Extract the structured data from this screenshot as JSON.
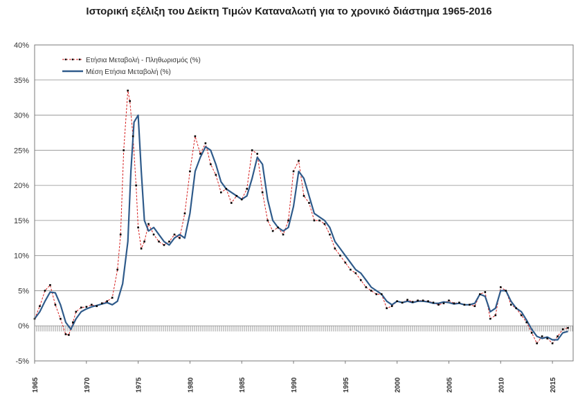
{
  "chart_data": {
    "type": "line",
    "title": "Ιστορική εξέλιξη του Δείκτη Τιμών Καταναλωτή για το χρονικό διάστημα 1965-2016",
    "xlabel": "",
    "ylabel": "",
    "xlim": [
      1965,
      2017
    ],
    "ylim": [
      -5,
      40
    ],
    "y_ticks": [
      "-5%",
      "0%",
      "5%",
      "10%",
      "15%",
      "20%",
      "25%",
      "30%",
      "35%",
      "40%"
    ],
    "y_tick_values": [
      -5,
      0,
      5,
      10,
      15,
      20,
      25,
      30,
      35,
      40
    ],
    "x_ticks": [
      "1965",
      "1970",
      "1975",
      "1980",
      "1985",
      "1990",
      "1995",
      "2000",
      "2005",
      "2010",
      "2015"
    ],
    "x_tick_values": [
      1965,
      1970,
      1975,
      1980,
      1985,
      1990,
      1995,
      2000,
      2005,
      2010,
      2015
    ],
    "grid": "horizontal",
    "legend": "top-left",
    "series": [
      {
        "name": "Ετήσια Μεταβολή  - Πληθωρισμός (%)",
        "color": "#d62020",
        "marker_color": "#000000",
        "style": "dashed-with-markers",
        "x": [
          1965.0,
          1965.5,
          1966.0,
          1966.5,
          1967.0,
          1967.5,
          1968.0,
          1968.3,
          1968.7,
          1969.0,
          1969.5,
          1970.0,
          1970.5,
          1971.0,
          1971.5,
          1972.0,
          1972.5,
          1973.0,
          1973.3,
          1973.6,
          1974.0,
          1974.2,
          1974.5,
          1974.8,
          1975.0,
          1975.3,
          1975.6,
          1976.0,
          1976.5,
          1977.0,
          1977.5,
          1978.0,
          1978.5,
          1979.0,
          1979.5,
          1980.0,
          1980.5,
          1981.0,
          1981.5,
          1982.0,
          1982.5,
          1983.0,
          1983.5,
          1984.0,
          1984.5,
          1985.0,
          1985.5,
          1986.0,
          1986.5,
          1987.0,
          1987.5,
          1988.0,
          1988.5,
          1989.0,
          1989.5,
          1990.0,
          1990.5,
          1991.0,
          1991.5,
          1992.0,
          1992.5,
          1993.0,
          1993.5,
          1994.0,
          1994.5,
          1995.0,
          1995.5,
          1996.0,
          1996.5,
          1997.0,
          1997.5,
          1998.0,
          1998.5,
          1999.0,
          1999.5,
          2000.0,
          2000.5,
          2001.0,
          2001.5,
          2002.0,
          2002.5,
          2003.0,
          2003.5,
          2004.0,
          2004.5,
          2005.0,
          2005.5,
          2006.0,
          2006.5,
          2007.0,
          2007.5,
          2008.0,
          2008.5,
          2009.0,
          2009.5,
          2010.0,
          2010.5,
          2011.0,
          2011.5,
          2012.0,
          2012.5,
          2013.0,
          2013.5,
          2014.0,
          2014.5,
          2015.0,
          2015.5,
          2016.0,
          2016.5
        ],
        "values": [
          1.0,
          2.8,
          5.0,
          5.8,
          3.0,
          1.0,
          -1.2,
          -1.3,
          0.5,
          2.0,
          2.6,
          2.7,
          3.0,
          2.8,
          3.2,
          3.5,
          4.0,
          8.0,
          13.0,
          25.0,
          33.5,
          32.0,
          27.0,
          20.0,
          14.0,
          11.0,
          12.0,
          14.5,
          13.0,
          12.0,
          11.5,
          12.0,
          13.0,
          12.5,
          16.0,
          22.0,
          27.0,
          24.5,
          26.0,
          23.0,
          21.5,
          19.0,
          19.5,
          17.5,
          18.5,
          18.0,
          19.5,
          25.0,
          24.5,
          19.0,
          15.0,
          13.5,
          14.0,
          13.0,
          15.0,
          22.0,
          23.5,
          18.5,
          17.5,
          15.0,
          15.0,
          14.5,
          13.0,
          11.0,
          10.0,
          9.0,
          8.0,
          7.5,
          6.5,
          5.5,
          5.0,
          4.5,
          4.5,
          2.5,
          2.8,
          3.5,
          3.3,
          3.7,
          3.4,
          3.6,
          3.6,
          3.5,
          3.3,
          3.0,
          3.2,
          3.6,
          3.2,
          3.3,
          3.0,
          3.0,
          2.8,
          4.5,
          4.8,
          1.0,
          1.5,
          5.5,
          5.0,
          3.0,
          2.5,
          1.5,
          0.5,
          -1.0,
          -2.5,
          -1.5,
          -1.8,
          -2.5,
          -1.5,
          -0.5,
          -0.3
        ]
      },
      {
        "name": "Μέση Ετήσια Μεταβολή  (%)",
        "color": "#2e5a8a",
        "style": "solid",
        "x": [
          1965.0,
          1965.5,
          1966.0,
          1966.5,
          1967.0,
          1967.5,
          1968.0,
          1968.5,
          1969.0,
          1969.5,
          1970.0,
          1970.5,
          1971.0,
          1971.5,
          1972.0,
          1972.5,
          1973.0,
          1973.5,
          1974.0,
          1974.3,
          1974.6,
          1975.0,
          1975.3,
          1975.6,
          1976.0,
          1976.5,
          1977.0,
          1977.5,
          1978.0,
          1978.5,
          1979.0,
          1979.5,
          1980.0,
          1980.5,
          1981.0,
          1981.5,
          1982.0,
          1982.5,
          1983.0,
          1983.5,
          1984.0,
          1984.5,
          1985.0,
          1985.5,
          1986.0,
          1986.5,
          1987.0,
          1987.5,
          1988.0,
          1988.5,
          1989.0,
          1989.5,
          1990.0,
          1990.5,
          1991.0,
          1991.5,
          1992.0,
          1992.5,
          1993.0,
          1993.5,
          1994.0,
          1994.5,
          1995.0,
          1995.5,
          1996.0,
          1996.5,
          1997.0,
          1997.5,
          1998.0,
          1998.5,
          1999.0,
          1999.5,
          2000.0,
          2000.5,
          2001.0,
          2001.5,
          2002.0,
          2002.5,
          2003.0,
          2003.5,
          2004.0,
          2004.5,
          2005.0,
          2005.5,
          2006.0,
          2006.5,
          2007.0,
          2007.5,
          2008.0,
          2008.5,
          2009.0,
          2009.5,
          2010.0,
          2010.5,
          2011.0,
          2011.5,
          2012.0,
          2012.5,
          2013.0,
          2013.5,
          2014.0,
          2014.5,
          2015.0,
          2015.5,
          2016.0,
          2016.5
        ],
        "values": [
          1.0,
          2.0,
          3.5,
          4.8,
          4.7,
          3.0,
          0.5,
          -0.5,
          1.0,
          2.0,
          2.4,
          2.7,
          2.9,
          3.1,
          3.3,
          3.0,
          3.5,
          6.0,
          12.0,
          22.0,
          29.0,
          30.0,
          22.0,
          15.0,
          13.5,
          14.0,
          13.0,
          12.0,
          11.5,
          12.5,
          13.0,
          12.5,
          16.0,
          22.0,
          24.0,
          25.5,
          25.0,
          23.0,
          20.5,
          19.5,
          19.0,
          18.5,
          18.0,
          18.5,
          21.0,
          24.0,
          23.0,
          18.0,
          15.0,
          14.0,
          13.5,
          14.0,
          17.0,
          22.0,
          21.0,
          18.5,
          16.0,
          15.5,
          15.0,
          14.0,
          12.0,
          11.0,
          10.0,
          9.0,
          8.0,
          7.5,
          6.5,
          5.5,
          5.0,
          4.5,
          3.5,
          3.0,
          3.5,
          3.3,
          3.5,
          3.3,
          3.5,
          3.5,
          3.4,
          3.2,
          3.2,
          3.4,
          3.3,
          3.1,
          3.2,
          3.0,
          3.0,
          3.2,
          4.5,
          4.2,
          2.0,
          2.5,
          5.0,
          5.0,
          3.5,
          2.5,
          2.0,
          0.8,
          -0.5,
          -1.5,
          -1.8,
          -1.6,
          -2.0,
          -2.0,
          -1.0,
          -0.8
        ]
      }
    ]
  }
}
